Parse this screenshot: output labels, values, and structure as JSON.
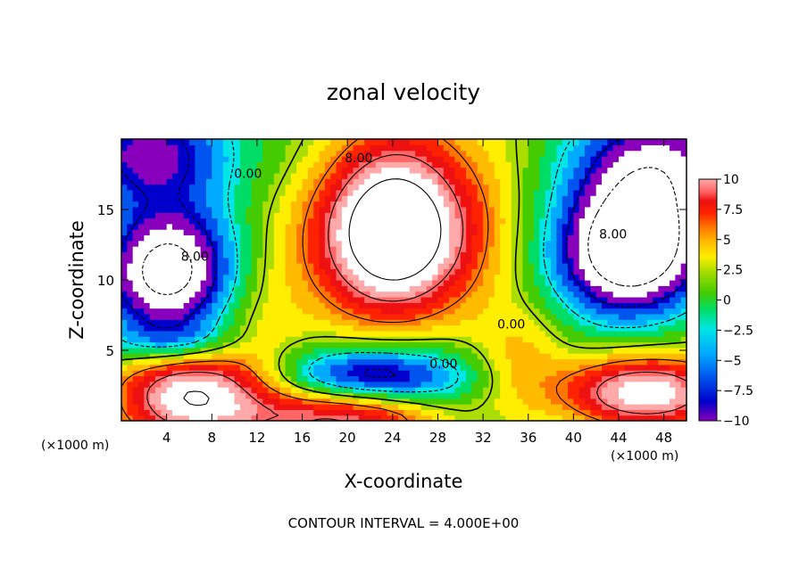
{
  "chart_data": {
    "type": "heatmap",
    "title": "zonal velocity",
    "xlabel": "X-coordinate",
    "ylabel": "Z-coordinate",
    "x_unit_left": "(×1000 m)",
    "x_unit_right": "(×1000 m)",
    "footer": "CONTOUR INTERVAL = 4.000E+00",
    "xlim": [
      0,
      50
    ],
    "ylim": [
      0,
      20
    ],
    "x_ticks": [
      4,
      8,
      12,
      16,
      20,
      24,
      28,
      32,
      36,
      40,
      44,
      48
    ],
    "y_ticks": [
      5,
      10,
      15
    ],
    "colorbar": {
      "range": [
        -10,
        10
      ],
      "ticks": [
        10,
        7.5,
        5,
        2.5,
        0,
        -2.5,
        -5,
        -7.5,
        -10
      ],
      "tick_labels": [
        "10",
        "7.5",
        "5",
        "2.5",
        "0",
        "−2.5",
        "−5",
        "−7.5",
        "−10"
      ]
    },
    "contour_labels": [
      {
        "text": "8.00",
        "x": 21,
        "y": 18.6
      },
      {
        "text": "0.00",
        "x": 11.2,
        "y": 17.5
      },
      {
        "text": "8.00",
        "x": 6.5,
        "y": 11.6
      },
      {
        "text": "0.00",
        "x": 34.5,
        "y": 6.8
      },
      {
        "text": "0.00",
        "x": 28.5,
        "y": 4.0
      },
      {
        "text": "8.00",
        "x": 43.5,
        "y": 13.2
      }
    ],
    "features": [
      {
        "sign": "positive",
        "x": 24,
        "z": 13,
        "sx": 5.5,
        "sz": 4.2,
        "amp": 15
      },
      {
        "sign": "positive",
        "x": 24,
        "z": 15,
        "sx": 3.5,
        "sz": 4.5,
        "amp": 4
      },
      {
        "sign": "positive",
        "x": 6,
        "z": 2,
        "sx": 4.5,
        "sz": 2.5,
        "amp": 12
      },
      {
        "sign": "positive",
        "x": 46,
        "z": 2,
        "sx": 5,
        "sz": 1.8,
        "amp": 12
      },
      {
        "sign": "positive",
        "x": 20,
        "z": 0.5,
        "sx": 6,
        "sz": 1.5,
        "amp": 10
      },
      {
        "sign": "negative",
        "x": 45,
        "z": 12,
        "sx": 5,
        "sz": 3.5,
        "amp": -16
      },
      {
        "sign": "negative",
        "x": 2,
        "z": 19,
        "sx": 5,
        "sz": 2.5,
        "amp": -8
      },
      {
        "sign": "negative",
        "x": 47,
        "z": 18.5,
        "sx": 6,
        "sz": 3,
        "amp": -8
      },
      {
        "sign": "negative",
        "x": 4,
        "z": 10.5,
        "sx": 4.5,
        "sz": 3.5,
        "amp": -14
      },
      {
        "sign": "negative",
        "x": 22,
        "z": 3,
        "sx": 6,
        "sz": 1.6,
        "amp": -10
      },
      {
        "sign": "negative",
        "x": 5,
        "z": 5.5,
        "sx": 4,
        "sz": 1.2,
        "amp": -5
      },
      {
        "sign": "positive",
        "x": 35,
        "z": 4,
        "sx": 3,
        "sz": 3,
        "amp": 4
      },
      {
        "sign": "positive",
        "x": 12,
        "z": 8,
        "sx": 3,
        "sz": 5,
        "amp": 2
      }
    ],
    "colors": {
      "frame": "#000000",
      "scale": [
        "#8800bb",
        "#0000cc",
        "#0055ee",
        "#00aaff",
        "#00e5e5",
        "#00dd66",
        "#44cc00",
        "#aadd00",
        "#ffee00",
        "#ffbb00",
        "#ff7700",
        "#ff2200",
        "#ee1111",
        "#ff6666",
        "#ffaaaa",
        "#ffffff"
      ]
    }
  }
}
